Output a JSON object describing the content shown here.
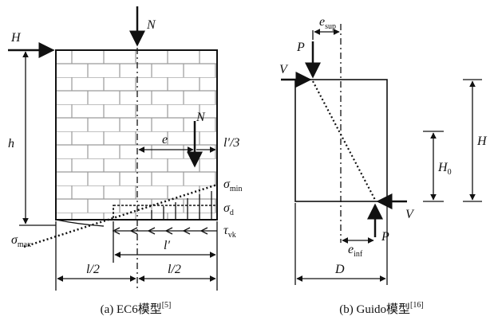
{
  "panel_a": {
    "labels": {
      "H": "H",
      "N_top": "N",
      "h": "h",
      "N_inner": "N",
      "e": "e",
      "l_third": "l′/3",
      "sigma_min": {
        "symbol": "σ",
        "sub": "min"
      },
      "sigma_d": {
        "symbol": "σ",
        "sub": "d"
      },
      "tau_vk": {
        "symbol": "τ",
        "sub": "vk"
      },
      "sigma_max": {
        "symbol": "σ",
        "sub": "max"
      },
      "l_prime": "l′",
      "l_half_left": "l/2",
      "l_half_right": "l/2"
    },
    "caption": {
      "text": "(a) EC6模型",
      "ref": "[5]"
    }
  },
  "panel_b": {
    "labels": {
      "P_top": "P",
      "e_sup": {
        "symbol": "e",
        "sub": "sup"
      },
      "V_top": "V",
      "H": "H",
      "H0": {
        "symbol": "H",
        "sub": "0"
      },
      "V_bottom": "V",
      "P_bottom": "P",
      "e_inf": {
        "symbol": "e",
        "sub": "inf"
      },
      "D": "D"
    },
    "caption": {
      "text": "(b) Guido模型",
      "ref": "[16]"
    }
  }
}
